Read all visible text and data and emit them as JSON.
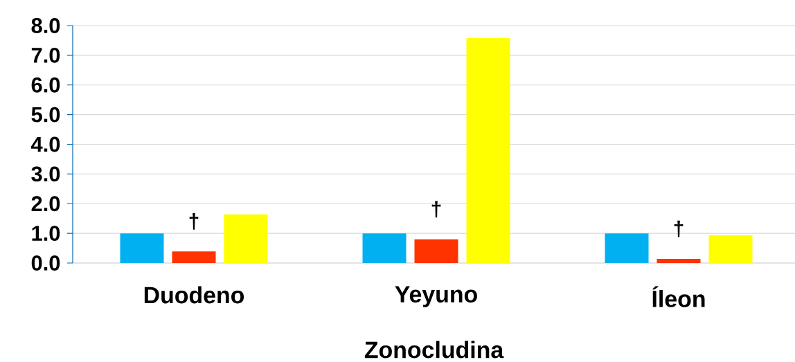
{
  "chart_data": {
    "type": "bar",
    "xlabel": "Zonocludina",
    "categories": [
      "Duodeno",
      "Yeyuno",
      "Íleon"
    ],
    "series": [
      {
        "color": "#00b0f0",
        "values": [
          1.0,
          1.0,
          1.0
        ]
      },
      {
        "color": "#ff3300",
        "values": [
          0.39,
          0.8,
          0.14
        ]
      },
      {
        "color": "#ffff00",
        "values": [
          1.64,
          7.58,
          0.94
        ]
      }
    ],
    "ylim": [
      0,
      8
    ],
    "yticks": [
      {
        "value": 0,
        "label": "0.0"
      },
      {
        "value": 1,
        "label": "1.0"
      },
      {
        "value": 2,
        "label": "2.0"
      },
      {
        "value": 3,
        "label": "3.0"
      },
      {
        "value": 4,
        "label": "4.0"
      },
      {
        "value": 5,
        "label": "5.0"
      },
      {
        "value": 6,
        "label": "6.0"
      },
      {
        "value": 7,
        "label": "7.0"
      },
      {
        "value": 8,
        "label": "8.0"
      }
    ],
    "grid": "y",
    "annotations": [
      "†",
      "†",
      "†"
    ]
  }
}
